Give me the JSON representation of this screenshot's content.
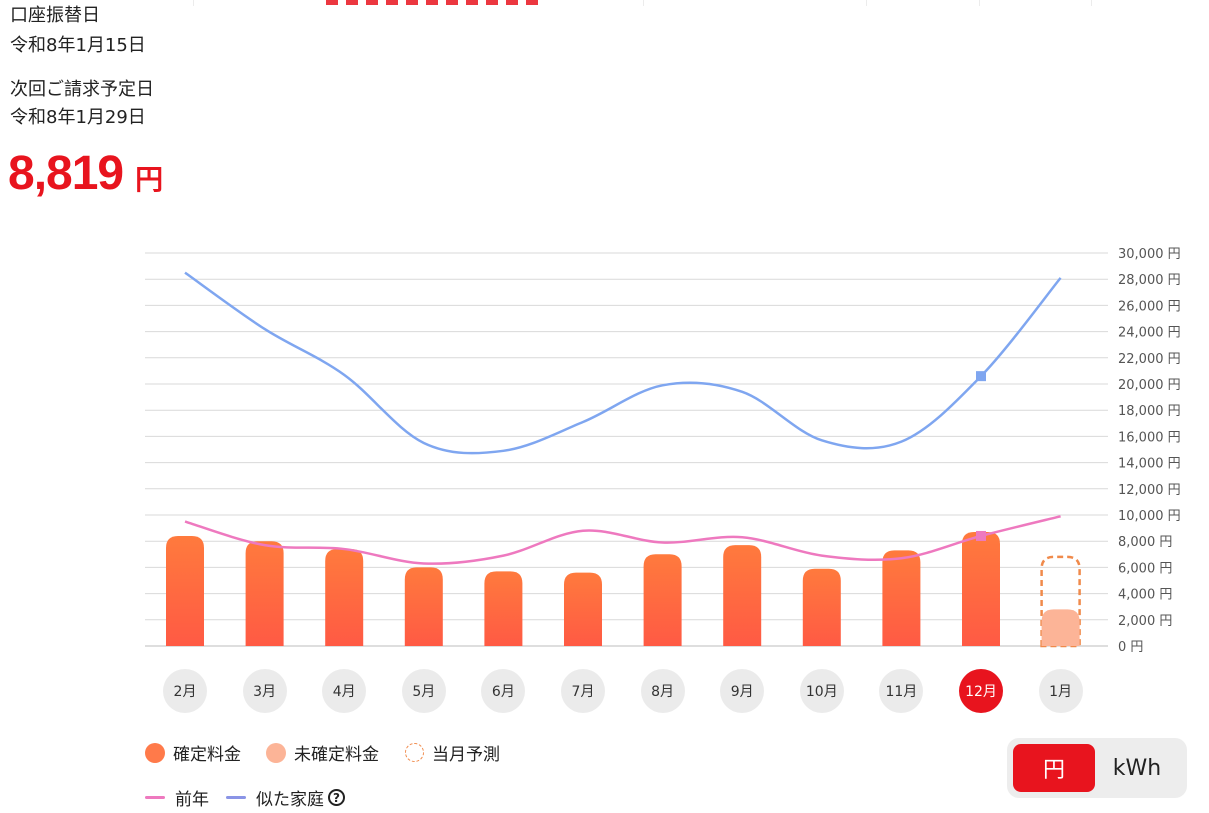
{
  "payment": {
    "transfer_label": "口座振替日",
    "transfer_date": "令和8年1月15日",
    "next_label": "次回ご請求予定日",
    "next_date": "令和8年1月29日",
    "amount": "8,819",
    "unit": "円"
  },
  "colors": {
    "confirmed": "#ff6a3d",
    "pending": "#fcb497",
    "forecast": "#f08a4b",
    "previous_year": "#ee79bf",
    "similar_home": "#7fa6f0",
    "accent": "#e8141e"
  },
  "chart_data": {
    "type": "bar",
    "categories": [
      "2月",
      "3月",
      "4月",
      "5月",
      "6月",
      "7月",
      "8月",
      "9月",
      "10月",
      "11月",
      "12月",
      "1月"
    ],
    "selected_category": "12月",
    "ylim": [
      0,
      30000
    ],
    "y_ticks": [
      "0 円",
      "2,000 円",
      "4,000 円",
      "6,000 円",
      "8,000 円",
      "10,000 円",
      "12,000 円",
      "14,000 円",
      "16,000 円",
      "18,000 円",
      "20,000 円",
      "22,000 円",
      "24,000 円",
      "26,000 円",
      "28,000 円",
      "30,000 円"
    ],
    "series": [
      {
        "name": "確定料金",
        "kind": "bar",
        "values": [
          8400,
          8000,
          7400,
          6000,
          5700,
          5600,
          7000,
          7700,
          5900,
          7300,
          8700,
          null
        ]
      },
      {
        "name": "未確定料金",
        "kind": "bar",
        "values": [
          null,
          null,
          null,
          null,
          null,
          null,
          null,
          null,
          null,
          null,
          null,
          2800
        ]
      },
      {
        "name": "当月予測",
        "kind": "bar-outline",
        "values": [
          null,
          null,
          null,
          null,
          null,
          null,
          null,
          null,
          null,
          null,
          null,
          6800
        ]
      },
      {
        "name": "前年",
        "kind": "line",
        "values": [
          9500,
          7700,
          7400,
          6300,
          6900,
          8800,
          7900,
          8300,
          6900,
          6700,
          8400,
          9900
        ]
      },
      {
        "name": "似た家庭",
        "kind": "line",
        "values": [
          28500,
          24200,
          20700,
          15500,
          14900,
          17100,
          19900,
          19400,
          15700,
          15600,
          20600,
          28100
        ]
      }
    ]
  },
  "legend": {
    "confirmed": "確定料金",
    "pending": "未確定料金",
    "forecast": "当月予測",
    "previous_year": "前年",
    "similar_home": "似た家庭",
    "help_icon": "question-circle-icon",
    "help_glyph": "?"
  },
  "unit_toggle": {
    "yen": "円",
    "kwh": "kWh",
    "selected": "円"
  }
}
